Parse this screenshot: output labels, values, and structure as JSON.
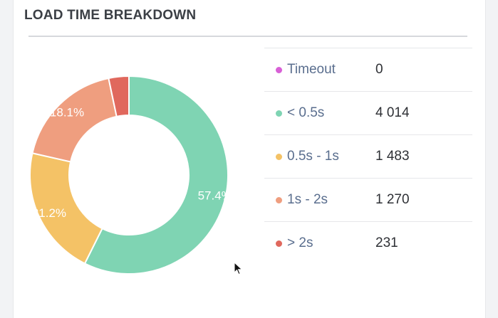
{
  "panel": {
    "title": "LOAD TIME BREAKDOWN"
  },
  "chart_data": {
    "type": "pie",
    "style": "donut",
    "categories": [
      "Timeout",
      "< 0.5s",
      "0.5s - 1s",
      "1s - 2s",
      "> 2s"
    ],
    "values": [
      0,
      4014,
      1483,
      1270,
      231
    ],
    "value_labels": [
      "0",
      "4 014",
      "1 483",
      "1 270",
      "231"
    ],
    "slice_order": [
      "< 0.5s",
      "0.5s - 1s",
      "1s - 2s",
      "> 2s",
      "Timeout"
    ],
    "percent_labels": {
      "< 0.5s": "57.4%",
      "0.5s - 1s": "21.2%",
      "1s - 2s": "18.1%",
      "> 2s": "",
      "Timeout": ""
    },
    "colors": {
      "Timeout": "#d860d6",
      "< 0.5s": "#7fd4b3",
      "0.5s - 1s": "#f4c266",
      "1s - 2s": "#ef9e7f",
      "> 2s": "#e0685d"
    },
    "legend_position": "right"
  }
}
